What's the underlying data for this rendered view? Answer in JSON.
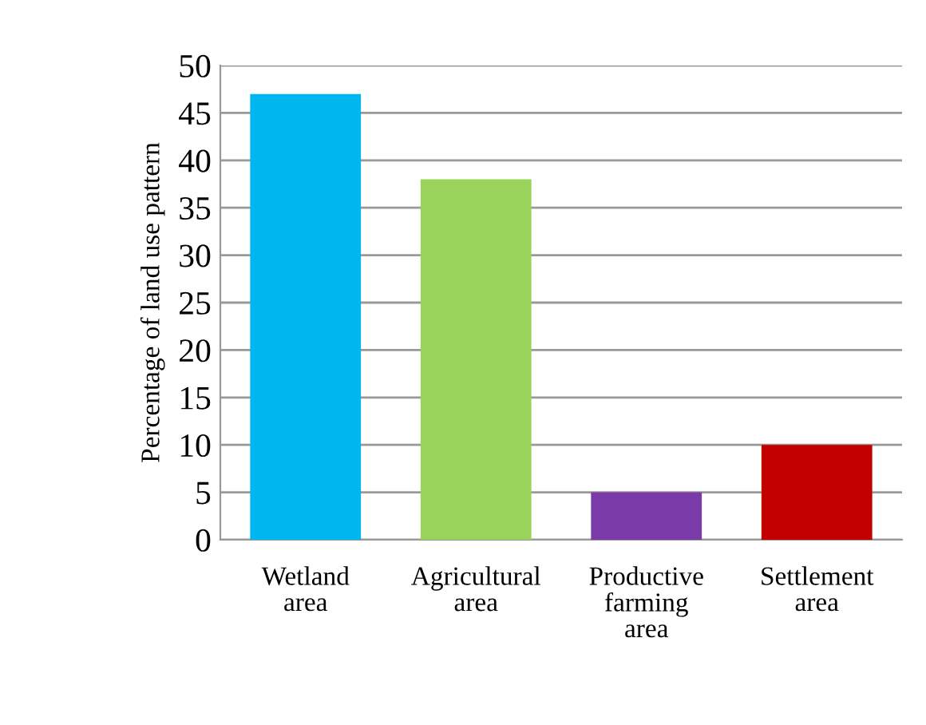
{
  "chart_data": {
    "type": "bar",
    "ylabel": "Percentage of land use pattern",
    "categories": [
      "Wetland\narea",
      "Agricultural\narea",
      "Productive\nfarming\narea",
      "Settlement\narea"
    ],
    "values": [
      47,
      38,
      5,
      10
    ],
    "colors": [
      "#00b6ef",
      "#9ad35a",
      "#7a3aa8",
      "#c20000"
    ],
    "ylim": [
      0,
      50
    ],
    "yticks": [
      0,
      5,
      10,
      15,
      20,
      25,
      30,
      35,
      40,
      45,
      50
    ],
    "grid": "y",
    "legend": false
  }
}
